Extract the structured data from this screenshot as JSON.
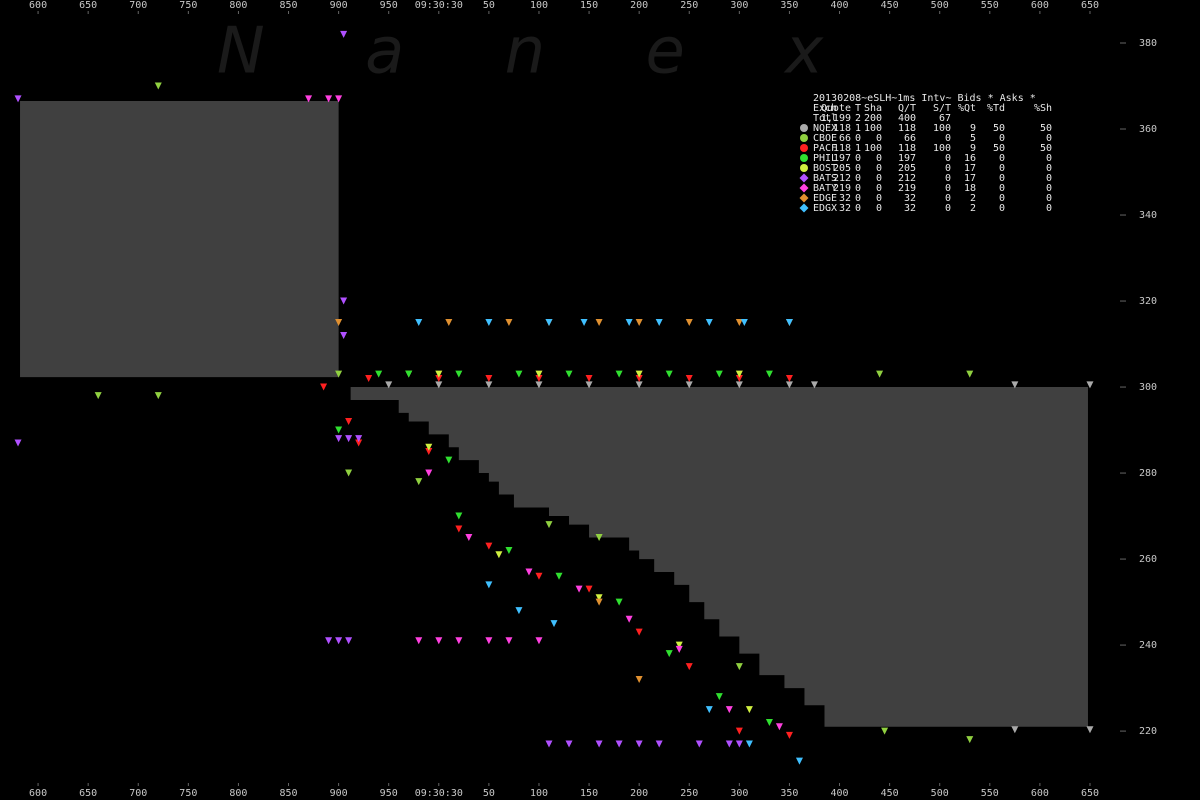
{
  "chart_data": {
    "type": "scatter",
    "watermark": "N a n e x",
    "xlim": [
      -438,
      660
    ],
    "ylim": [
      206.3,
      390
    ],
    "xticks": [
      {
        "value": -400,
        "label": "600"
      },
      {
        "value": -350,
        "label": "650"
      },
      {
        "value": -300,
        "label": "700"
      },
      {
        "value": -250,
        "label": "750"
      },
      {
        "value": -200,
        "label": "800"
      },
      {
        "value": -150,
        "label": "850"
      },
      {
        "value": -100,
        "label": "900"
      },
      {
        "value": -50,
        "label": "950"
      },
      {
        "value": 0,
        "label": "09:30:30"
      },
      50,
      100,
      150,
      200,
      250,
      300,
      350,
      400,
      450,
      500,
      550,
      600,
      650
    ],
    "yticks": [
      220,
      240,
      260,
      280,
      300,
      320,
      340,
      360,
      380
    ],
    "bands": [
      {
        "color": "#404040",
        "top": 366.5,
        "x": [
          -418,
          -100
        ],
        "low": [
          302.3,
          302.3
        ]
      },
      {
        "color": "#404040",
        "top": 300,
        "x": [
          -88,
          -40,
          -30,
          -10,
          10,
          20,
          40,
          50,
          60,
          75,
          110,
          130,
          150,
          190,
          200,
          215,
          235,
          250,
          265,
          280,
          300,
          320,
          345,
          365,
          385,
          648
        ],
        "low": [
          297,
          294,
          292,
          289,
          286,
          283,
          280,
          278,
          275,
          272,
          270,
          268,
          265,
          262,
          260,
          257,
          254,
          250,
          246,
          242,
          238,
          233,
          230,
          226,
          221,
          221
        ]
      }
    ],
    "legend": {
      "title": "20130208~eSLH~1ms Intv~ Bids * Asks *",
      "columns": [
        "Exch",
        "Quote",
        "T",
        "Sha",
        "Q/T",
        "S/T",
        "%Qt",
        "%Td",
        "%Sh"
      ],
      "totals": [
        "Totl",
        "1,199",
        "2",
        "200",
        "400",
        "67"
      ]
    },
    "series": [
      {
        "name": "NQEX",
        "color": "#aaaaaa",
        "marker": "circle",
        "stats": [
          "118",
          "1",
          "100",
          "118",
          "100",
          "9",
          "50",
          "50"
        ],
        "x": [
          -50,
          0,
          50,
          100,
          150,
          200,
          250,
          300,
          350,
          375,
          575,
          650,
          575,
          650
        ],
        "y": [
          300.5,
          300.5,
          300.5,
          300.5,
          300.5,
          300.5,
          300.5,
          300.5,
          300.5,
          300.5,
          300.5,
          300.5,
          220.3,
          220.3
        ]
      },
      {
        "name": "CBOE",
        "color": "#90d040",
        "marker": "circle",
        "stats": [
          "66",
          "0",
          "0",
          "66",
          "0",
          "5",
          "0",
          "0"
        ],
        "x": [
          -340,
          -280,
          -280,
          -30,
          -100,
          440,
          530,
          445,
          530,
          -20,
          -90,
          110,
          160,
          300
        ],
        "y": [
          298,
          370,
          298,
          303,
          303,
          303,
          303,
          220,
          218,
          278,
          280,
          268,
          265,
          235
        ]
      },
      {
        "name": "PACF",
        "color": "#ff2020",
        "marker": "circle",
        "stats": [
          "118",
          "1",
          "100",
          "118",
          "100",
          "9",
          "50",
          "50"
        ],
        "x": [
          -70,
          0,
          50,
          100,
          150,
          200,
          250,
          300,
          350,
          -115,
          -90,
          -80,
          -10,
          20,
          50,
          100,
          150,
          200,
          250,
          300,
          350
        ],
        "y": [
          302,
          302,
          302,
          302,
          302,
          302,
          302,
          302,
          302,
          300,
          292,
          287,
          285,
          267,
          263,
          256,
          253,
          243,
          235,
          220,
          219
        ]
      },
      {
        "name": "PHIL",
        "color": "#30e030",
        "marker": "circle",
        "stats": [
          "197",
          "0",
          "0",
          "197",
          "0",
          "16",
          "0",
          "0"
        ],
        "x": [
          -60,
          -30,
          20,
          80,
          130,
          180,
          230,
          280,
          330,
          -100,
          10,
          20,
          70,
          120,
          180,
          230,
          280,
          330
        ],
        "y": [
          303,
          303,
          303,
          303,
          303,
          303,
          303,
          303,
          303,
          290,
          283,
          270,
          262,
          256,
          250,
          238,
          228,
          222
        ]
      },
      {
        "name": "BOST",
        "color": "#d0f040",
        "marker": "circle",
        "stats": [
          "205",
          "0",
          "0",
          "205",
          "0",
          "17",
          "0",
          "0"
        ],
        "x": [
          0,
          100,
          200,
          300,
          -10,
          60,
          160,
          240,
          310
        ],
        "y": [
          303,
          303,
          303,
          303,
          286,
          261,
          251,
          240,
          225
        ]
      },
      {
        "name": "BATS",
        "color": "#b050ff",
        "marker": "diamond",
        "stats": [
          "212",
          "0",
          "0",
          "212",
          "0",
          "17",
          "0",
          "0"
        ],
        "x": [
          -420,
          -420,
          -95,
          -95,
          -95,
          -100,
          -90,
          -80,
          -110,
          -100,
          -90,
          110,
          130,
          160,
          180,
          200,
          220,
          260,
          290,
          300
        ],
        "y": [
          367,
          287,
          382,
          320,
          312,
          288,
          288,
          288,
          241,
          241,
          241,
          217,
          217,
          217,
          217,
          217,
          217,
          217,
          217,
          217
        ]
      },
      {
        "name": "BATY",
        "color": "#ff40e0",
        "marker": "diamond",
        "stats": [
          "219",
          "0",
          "0",
          "219",
          "0",
          "18",
          "0",
          "0"
        ],
        "x": [
          -130,
          -110,
          -100,
          -20,
          0,
          20,
          50,
          70,
          100,
          -10,
          30,
          90,
          140,
          190,
          240,
          290,
          340
        ],
        "y": [
          367,
          367,
          367,
          241,
          241,
          241,
          241,
          241,
          241,
          280,
          265,
          257,
          253,
          246,
          239,
          225,
          221
        ]
      },
      {
        "name": "EDGE",
        "color": "#e09030",
        "marker": "diamond",
        "stats": [
          "32",
          "0",
          "0",
          "32",
          "0",
          "2",
          "0",
          "0"
        ],
        "x": [
          -100,
          10,
          70,
          110,
          160,
          200,
          250,
          300,
          350,
          200,
          160
        ],
        "y": [
          315,
          315,
          315,
          315,
          315,
          315,
          315,
          315,
          315,
          232,
          250
        ]
      },
      {
        "name": "EDGX",
        "color": "#40c0ff",
        "marker": "diamond",
        "stats": [
          "32",
          "0",
          "0",
          "32",
          "0",
          "2",
          "0",
          "0"
        ],
        "x": [
          -20,
          50,
          110,
          145,
          190,
          220,
          270,
          305,
          350,
          50,
          80,
          115,
          270,
          310,
          360
        ],
        "y": [
          315,
          315,
          315,
          315,
          315,
          315,
          315,
          315,
          315,
          254,
          248,
          245,
          225,
          217,
          213
        ]
      }
    ]
  }
}
